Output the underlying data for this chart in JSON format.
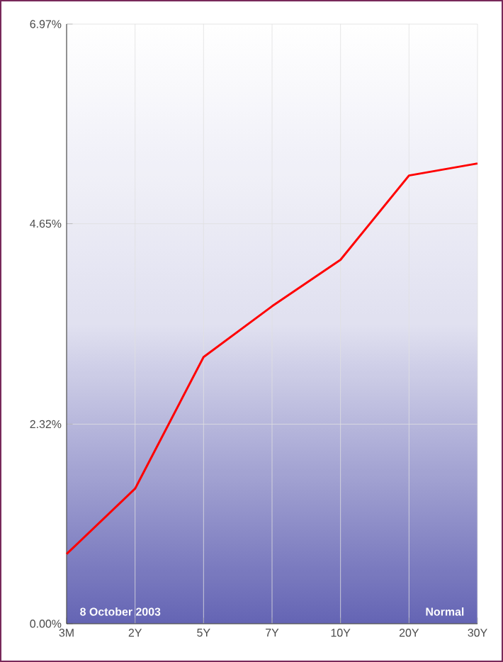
{
  "chart_data": {
    "type": "line",
    "categories": [
      "3M",
      "2Y",
      "5Y",
      "7Y",
      "10Y",
      "20Y",
      "30Y"
    ],
    "series": [
      {
        "color": "#ff0000",
        "values": [
          0.81,
          1.57,
          3.1,
          3.69,
          4.23,
          5.21,
          5.35
        ]
      }
    ],
    "ylim": [
      0,
      6.97
    ],
    "yticks": [
      {
        "value": 0,
        "label": "0.00%"
      },
      {
        "value": 2.32,
        "label": "2.32%"
      },
      {
        "value": 4.65,
        "label": "4.65%"
      },
      {
        "value": 6.97,
        "label": "6.97%"
      }
    ],
    "grid": true,
    "annotations": [
      "8  October 2003",
      "Normal"
    ]
  }
}
